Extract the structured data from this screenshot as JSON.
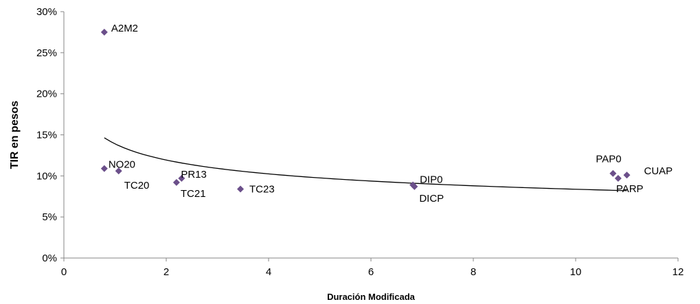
{
  "chart_data": {
    "type": "scatter",
    "title": "",
    "xlabel": "Duración Modificada",
    "ylabel": "TIR en pesos",
    "xlim": [
      0,
      12
    ],
    "ylim": [
      0,
      30
    ],
    "x_ticks": [
      0,
      2,
      4,
      6,
      8,
      10,
      12
    ],
    "y_ticks": [
      0,
      5,
      10,
      15,
      20,
      25,
      30
    ],
    "x_tick_labels": [
      "0",
      "2",
      "4",
      "6",
      "8",
      "10",
      "12"
    ],
    "y_tick_labels": [
      "0%",
      "5%",
      "10%",
      "15%",
      "20%",
      "25%",
      "30%"
    ],
    "y_unit": "%",
    "grid": false,
    "legend": "none",
    "marker_color": "#6b4f8a",
    "trendline_color": "#000000",
    "points": [
      {
        "label": "A2M2",
        "x": 0.79,
        "y": 27.5
      },
      {
        "label": "NO20",
        "x": 0.79,
        "y": 10.9
      },
      {
        "label": "TC20",
        "x": 1.07,
        "y": 10.6
      },
      {
        "label": "TC21",
        "x": 2.2,
        "y": 9.2
      },
      {
        "label": "PR13",
        "x": 2.3,
        "y": 9.7
      },
      {
        "label": "TC23",
        "x": 3.45,
        "y": 8.4
      },
      {
        "label": "DIP0",
        "x": 6.82,
        "y": 8.9
      },
      {
        "label": "DICP",
        "x": 6.85,
        "y": 8.7
      },
      {
        "label": "PAP0",
        "x": 10.73,
        "y": 10.3
      },
      {
        "label": "PARP",
        "x": 10.83,
        "y": 9.7
      },
      {
        "label": "CUAP",
        "x": 11.0,
        "y": 10.1
      }
    ],
    "trendline": {
      "type": "power",
      "a": 13.9,
      "b": -0.22,
      "x_range": [
        0.79,
        11.0
      ]
    }
  }
}
